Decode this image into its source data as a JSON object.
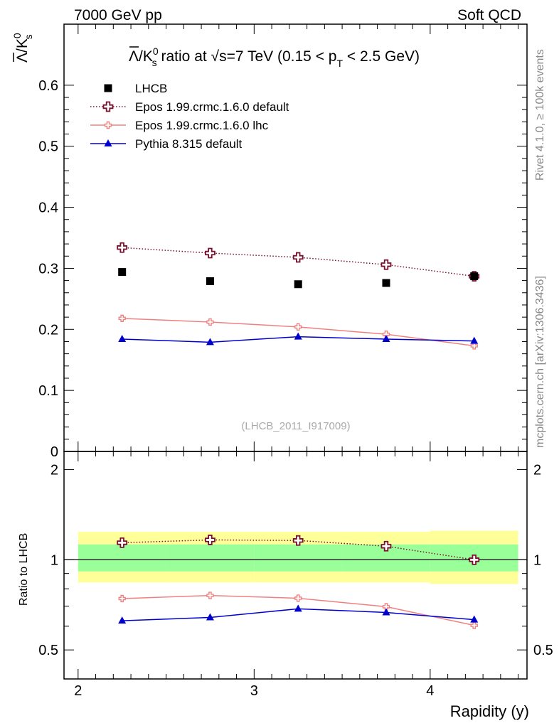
{
  "header": {
    "energy_label": "7000 GeV pp",
    "category_label": "Soft QCD"
  },
  "side": {
    "rivet_label": "Rivet 4.1.0, ≥ 100k events",
    "mcplots_label": "mcplots.cern.ch [arXiv:1306.3436]"
  },
  "chart_data": {
    "type": "scatter",
    "title": "Λ̅/K⁰ₛ ratio at √s=7 TeV (0.15 < p_T < 2.5 GeV)",
    "title_parts": {
      "lead": "Λ",
      "slash": "/K",
      "sup": "0",
      "sub": "s",
      "mid": " ratio at ",
      "sqrt": "√",
      "s_energy": "s=7 TeV (0.15 < p",
      "sub_t": "T",
      "tail": " < 2.5 GeV)"
    },
    "ylabel_parts": {
      "lead": "Λ",
      "slash": "/K",
      "sup": "0",
      "sub": "s"
    },
    "xlabel": "Rapidity (y)",
    "watermark": "(LHCB_2011_I917009)",
    "xlim": [
      1.92,
      4.55
    ],
    "main_ylim": [
      0,
      0.7
    ],
    "main_yticks": [
      0,
      0.1,
      0.2,
      0.3,
      0.4,
      0.5,
      0.6
    ],
    "main_ytick_labels": [
      "0",
      "0.1",
      "0.2",
      "0.3",
      "0.4",
      "0.5",
      "0.6"
    ],
    "xticks": [
      2,
      3,
      4
    ],
    "xtick_labels": [
      "2",
      "3",
      "4"
    ],
    "x": [
      2.25,
      2.75,
      3.25,
      3.75,
      4.25
    ],
    "ratio": {
      "ylabel": "Ratio to LHCB",
      "ylim": [
        0.4,
        2.3
      ],
      "log_scale": true,
      "yticks": [
        0.5,
        1,
        2
      ],
      "ytick_labels": [
        "0.5",
        "1",
        "2"
      ],
      "bins": [
        {
          "lo": 2.0,
          "hi": 2.5,
          "yellow": [
            0.84,
            1.24
          ],
          "green": [
            0.915,
            1.125
          ]
        },
        {
          "lo": 2.5,
          "hi": 3.0,
          "yellow": [
            0.84,
            1.24
          ],
          "green": [
            0.915,
            1.125
          ]
        },
        {
          "lo": 3.0,
          "hi": 3.5,
          "yellow": [
            0.84,
            1.24
          ],
          "green": [
            0.915,
            1.125
          ]
        },
        {
          "lo": 3.5,
          "hi": 4.0,
          "yellow": [
            0.84,
            1.24
          ],
          "green": [
            0.915,
            1.125
          ]
        },
        {
          "lo": 4.0,
          "hi": 4.5,
          "yellow": [
            0.83,
            1.25
          ],
          "green": [
            0.915,
            1.125
          ]
        }
      ]
    },
    "series": [
      {
        "name": "LHCB",
        "color": "#000000",
        "marker": "square",
        "line": "none",
        "values": [
          0.294,
          0.279,
          0.274,
          0.276,
          0.287
        ],
        "ratio": [
          1.0,
          1.0,
          1.0,
          1.0,
          1.0
        ]
      },
      {
        "name": "Epos 1.99.crmc.1.6.0 default",
        "color": "#7a1030",
        "marker": "open-cross",
        "line": "dotted",
        "values": [
          0.334,
          0.325,
          0.318,
          0.306,
          0.287
        ],
        "ratio": [
          1.14,
          1.165,
          1.16,
          1.11,
          1.0
        ]
      },
      {
        "name": "Epos 1.99.crmc.1.6.0 lhc",
        "color": "#f08080",
        "marker": "small-cross",
        "line": "solid",
        "values": [
          0.218,
          0.212,
          0.204,
          0.192,
          0.173
        ],
        "ratio": [
          0.742,
          0.76,
          0.744,
          0.697,
          0.604
        ]
      },
      {
        "name": "Pythia 8.315 default",
        "color": "#0000cc",
        "marker": "triangle",
        "line": "solid",
        "values": [
          0.184,
          0.179,
          0.188,
          0.184,
          0.181
        ],
        "ratio": [
          0.626,
          0.642,
          0.686,
          0.667,
          0.631
        ]
      }
    ]
  }
}
